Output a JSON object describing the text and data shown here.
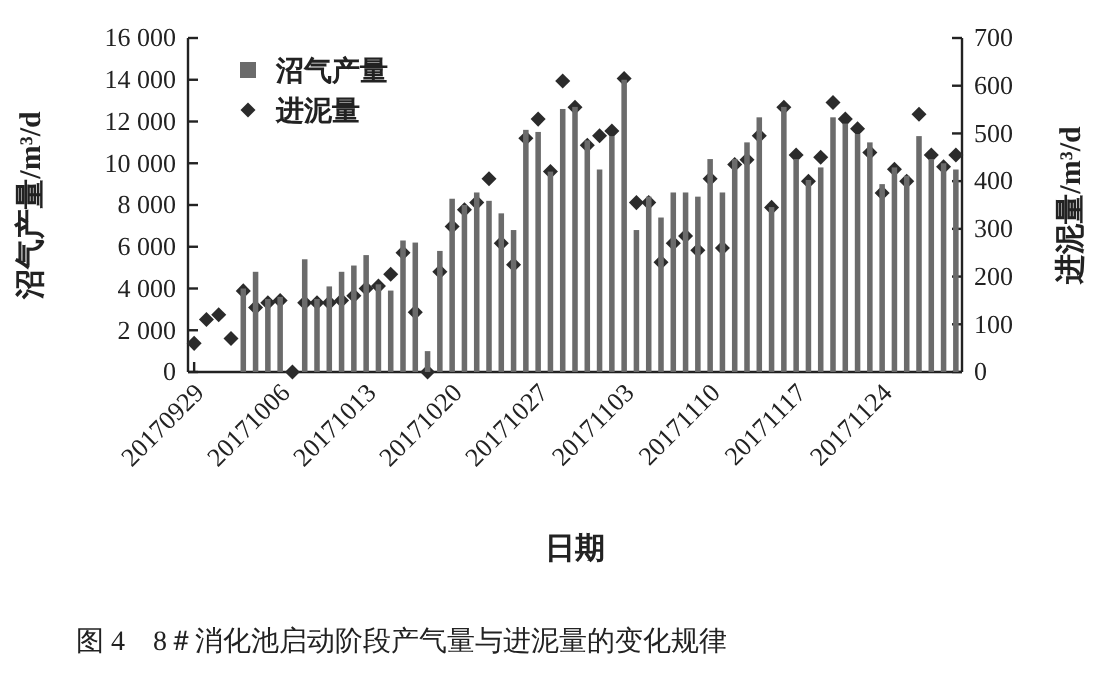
{
  "chart_data": {
    "type": "bar",
    "xlabel": "日期",
    "ylabel": "沼气产量/m³/d",
    "y2label": "进泥量/m³/d",
    "x": [
      "2017-09-29",
      "2017-09-30",
      "2017-10-01",
      "2017-10-02",
      "2017-10-03",
      "2017-10-04",
      "2017-10-05",
      "2017-10-06",
      "2017-10-07",
      "2017-10-08",
      "2017-10-09",
      "2017-10-10",
      "2017-10-11",
      "2017-10-12",
      "2017-10-13",
      "2017-10-14",
      "2017-10-15",
      "2017-10-16",
      "2017-10-17",
      "2017-10-18",
      "2017-10-19",
      "2017-10-20",
      "2017-10-21",
      "2017-10-22",
      "2017-10-23",
      "2017-10-24",
      "2017-10-25",
      "2017-10-26",
      "2017-10-27",
      "2017-10-28",
      "2017-10-29",
      "2017-10-30",
      "2017-10-31",
      "2017-11-01",
      "2017-11-02",
      "2017-11-03",
      "2017-11-04",
      "2017-11-05",
      "2017-11-06",
      "2017-11-07",
      "2017-11-08",
      "2017-11-09",
      "2017-11-10",
      "2017-11-11",
      "2017-11-12",
      "2017-11-13",
      "2017-11-14",
      "2017-11-15",
      "2017-11-16",
      "2017-11-17",
      "2017-11-18",
      "2017-11-19",
      "2017-11-20",
      "2017-11-21",
      "2017-11-22",
      "2017-11-23",
      "2017-11-24",
      "2017-11-25",
      "2017-11-26",
      "2017-11-27",
      "2017-11-28",
      "2017-11-29",
      "2017-11-30"
    ],
    "series": [
      {
        "name": "沼气产量",
        "color": "#6b6b6b",
        "values": [
          null,
          null,
          null,
          null,
          4000,
          4800,
          3500,
          3600,
          null,
          5400,
          3500,
          4100,
          4800,
          5100,
          5600,
          4200,
          3900,
          6300,
          6200,
          1000,
          5800,
          8300,
          8000,
          8600,
          8200,
          7600,
          6800,
          11600,
          11500,
          9600,
          12600,
          12700,
          11100,
          9700,
          11300,
          14000,
          6800,
          8400,
          7400,
          8600,
          8600,
          8400,
          10200,
          8600,
          10200,
          11000,
          12200,
          7900,
          12700,
          10200,
          9200,
          9800,
          12200,
          11900,
          11400,
          11000,
          9000,
          9800,
          9400,
          11300,
          10200,
          10000,
          9700
        ]
      },
      {
        "name": "进泥量",
        "type": "scatter",
        "axis": "y2",
        "color": "#2b2b2b",
        "values": [
          60,
          110,
          120,
          70,
          170,
          135,
          145,
          150,
          0,
          145,
          145,
          145,
          150,
          160,
          175,
          180,
          205,
          250,
          125,
          0,
          210,
          305,
          340,
          355,
          405,
          270,
          225,
          490,
          530,
          420,
          610,
          555,
          475,
          495,
          505,
          615,
          355,
          355,
          230,
          270,
          285,
          255,
          405,
          260,
          435,
          445,
          495,
          345,
          555,
          455,
          400,
          450,
          565,
          530,
          510,
          460,
          375,
          425,
          400,
          540,
          455,
          430,
          455
        ]
      }
    ],
    "xlim": [
      "2017-09-28T12:00",
      "2017-11-30T12:00"
    ],
    "xticks": [
      {
        "value": "2017-09-29",
        "label": "20170929"
      },
      {
        "value": "2017-10-06",
        "label": "20171006"
      },
      {
        "value": "2017-10-13",
        "label": "20171013"
      },
      {
        "value": "2017-10-20",
        "label": "20171020"
      },
      {
        "value": "2017-10-27",
        "label": "20171027"
      },
      {
        "value": "2017-11-03",
        "label": "20171103"
      },
      {
        "value": "2017-11-10",
        "label": "20171110"
      },
      {
        "value": "2017-11-17",
        "label": "20171117"
      },
      {
        "value": "2017-11-24",
        "label": "20171124"
      }
    ],
    "ylim": [
      0,
      16000
    ],
    "yticks": [
      0,
      {
        "value": 2000,
        "label": "2 000"
      },
      {
        "value": 4000,
        "label": "4 000"
      },
      {
        "value": 6000,
        "label": "6 000"
      },
      {
        "value": 8000,
        "label": "8 000"
      },
      {
        "value": 10000,
        "label": "10 000"
      },
      {
        "value": 12000,
        "label": "12 000"
      },
      {
        "value": 14000,
        "label": "14 000"
      },
      {
        "value": 16000,
        "label": "16 000"
      }
    ],
    "y2lim": [
      0,
      700
    ],
    "y2ticks": [
      0,
      100,
      200,
      300,
      400,
      500,
      600,
      700
    ],
    "marker": "diamond",
    "legend": "top left",
    "grid": false,
    "annotations": [
      "图 4　8＃消化池启动阶段产气量与进泥量的变化规律"
    ]
  }
}
